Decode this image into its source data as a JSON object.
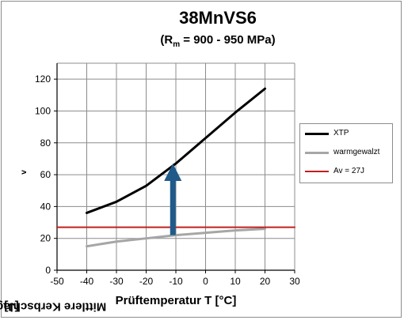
{
  "chart_data": {
    "type": "line",
    "title": "38MnVS6",
    "subtitle": {
      "pre": "(R",
      "sub": "m",
      "post": " = 900 - 950 MPa)"
    },
    "ylabel": {
      "pre": "Mittlere Kerbschlagarbeit ISO-V A",
      "sub": "v",
      "post": " [J]"
    },
    "xlabel": "Prüftemperatur T [°C]",
    "xlim": [
      -50,
      30
    ],
    "ylim": [
      0,
      130
    ],
    "xticks": [
      -50,
      -40,
      -30,
      -20,
      -10,
      0,
      10,
      20,
      30
    ],
    "yticks": [
      0,
      20,
      40,
      60,
      80,
      100,
      120
    ],
    "grid": true,
    "legend_position": "right",
    "series": [
      {
        "name": "XTP",
        "color": "#000000",
        "width": 3,
        "x": [
          -40,
          -30,
          -20,
          -10,
          0,
          10,
          20
        ],
        "y": [
          36,
          43,
          53,
          67,
          83,
          99,
          114
        ]
      },
      {
        "name": "warmgewalzt",
        "color": "#a6a6a6",
        "width": 3,
        "x": [
          -40,
          -30,
          -20,
          -10,
          0,
          10,
          20
        ],
        "y": [
          15,
          18,
          20,
          22,
          23.5,
          25,
          26
        ]
      },
      {
        "name": "Av = 27J",
        "color": "#c0201e",
        "width": 2,
        "x": [
          -50,
          30
        ],
        "y": [
          27,
          27
        ]
      }
    ],
    "annotations": [
      {
        "type": "arrow",
        "color": "#1f5a8a",
        "x": -11,
        "y_from": 22,
        "y_to": 67
      }
    ]
  }
}
